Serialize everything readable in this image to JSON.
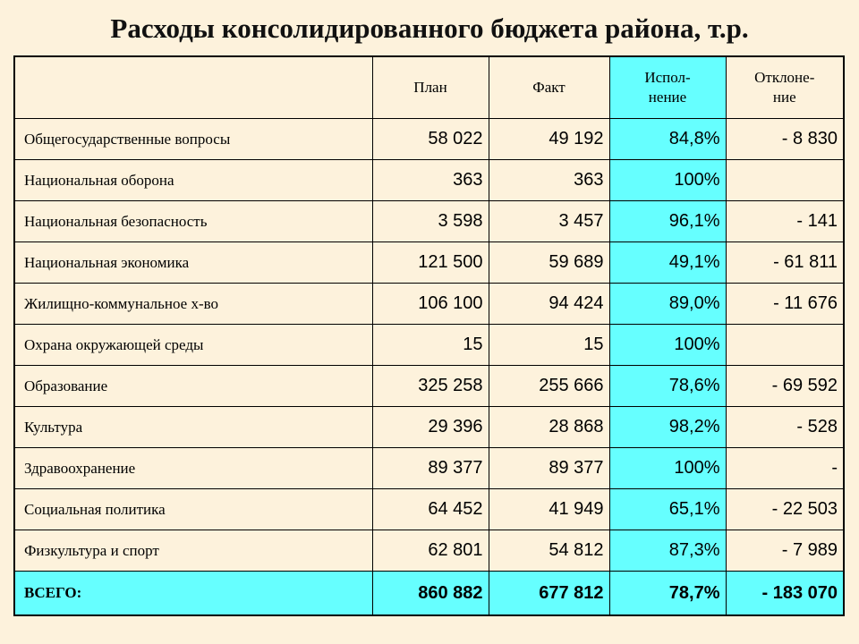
{
  "title": "Расходы консолидированного бюджета района, т.р.",
  "table": {
    "header": [
      [
        "План"
      ],
      [
        "Факт"
      ],
      [
        "Испол-",
        "нение"
      ],
      [
        "Отклоне-",
        "ние"
      ]
    ],
    "rows": [
      {
        "label": "Общегосударственные вопросы",
        "cells": [
          "58 022",
          "49 192",
          "84,8%",
          "- 8 830"
        ]
      },
      {
        "label": "Национальная оборона",
        "cells": [
          "363",
          "363",
          "100%",
          null
        ]
      },
      {
        "label": "Национальная безопасность",
        "cells": [
          "3 598",
          "3 457",
          "96,1%",
          "- 141"
        ]
      },
      {
        "label": "Национальная экономика",
        "cells": [
          "121 500",
          "59 689",
          "49,1%",
          "- 61 811"
        ]
      },
      {
        "label": "Жилищно-коммунальное х-во",
        "cells": [
          "106 100",
          "94 424",
          "89,0%",
          "- 11 676"
        ]
      },
      {
        "label": "Охрана окружающей среды",
        "cells": [
          "15",
          "15",
          "100%",
          null
        ]
      },
      {
        "label": "Образование",
        "cells": [
          "325 258",
          "255 666",
          "78,6%",
          "- 69 592"
        ]
      },
      {
        "label": "Культура",
        "cells": [
          "29 396",
          "28 868",
          "98,2%",
          "- 528"
        ]
      },
      {
        "label": "Здравоохранение",
        "cells": [
          "89 377",
          "89 377",
          "100%",
          "-"
        ]
      },
      {
        "label": "Социальная политика",
        "cells": [
          "64 452",
          "41 949",
          "65,1%",
          "- 22 503"
        ]
      },
      {
        "label": "Физкультура и спорт",
        "cells": [
          "62 801",
          "54 812",
          "87,3%",
          "- 7 989"
        ]
      }
    ],
    "total": {
      "label": "ВСЕГО:",
      "cells": [
        "860 882",
        "677 812",
        "78,7%",
        "- 183 070"
      ]
    }
  }
}
